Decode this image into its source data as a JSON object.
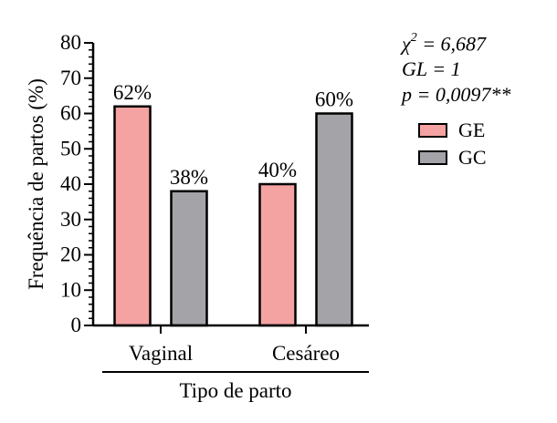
{
  "chart_data": {
    "type": "bar",
    "categories": [
      "Vaginal",
      "Cesáreo"
    ],
    "series": [
      {
        "name": "GE",
        "values": [
          62,
          40
        ],
        "labels": [
          "62%",
          "40%"
        ],
        "color": "#f4a2a2"
      },
      {
        "name": "GC",
        "values": [
          38,
          60
        ],
        "labels": [
          "38%",
          "60%"
        ],
        "color": "#a4a3a8"
      }
    ],
    "xlabel": "Tipo de parto",
    "ylabel": "Frequência de partos (%)",
    "ylim": [
      0,
      80
    ],
    "yticks": [
      0,
      10,
      20,
      30,
      40,
      50,
      60,
      70,
      80
    ],
    "grid": false,
    "legend_position": "right"
  },
  "stats": {
    "chi_symbol": "χ",
    "chi_exp": "2",
    "chi_value": " = 6,687",
    "gl": "GL = 1",
    "p": "p = 0,0097**"
  }
}
